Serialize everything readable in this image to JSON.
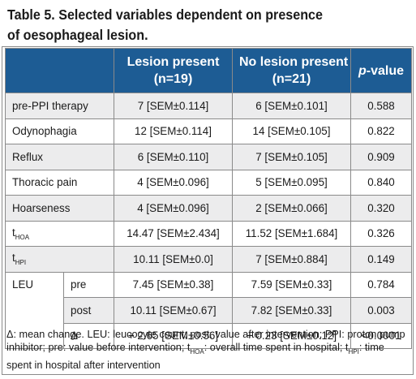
{
  "title": {
    "line1": "Table 5. Selected variables dependent on presence",
    "line2": "of oesophageal lesion."
  },
  "header": {
    "lesion_present_line1": "Lesion present",
    "lesion_present_line2": "(n=19)",
    "no_lesion_line1": "No lesion present",
    "no_lesion_line2": "(n=21)",
    "pvalue_italic": "p",
    "pvalue_rest": "-value"
  },
  "rows": [
    {
      "label": "pre-PPI therapy",
      "lesion": "7 [SEM±0.114]",
      "no_lesion": "6 [SEM±0.101]",
      "p": "0.588"
    },
    {
      "label": "Odynophagia",
      "lesion": "12 [SEM±0.114]",
      "no_lesion": "14 [SEM±0.105]",
      "p": "0.822"
    },
    {
      "label": "Reflux",
      "lesion": "6 [SEM±0.110]",
      "no_lesion": "7 [SEM±0.105]",
      "p": "0.909"
    },
    {
      "label": "Thoracic pain",
      "lesion": "4 [SEM±0.096]",
      "no_lesion": "5 [SEM±0.095]",
      "p": "0.840"
    },
    {
      "label": "Hoarseness",
      "lesion": "4 [SEM±0.096]",
      "no_lesion": "2 [SEM±0.066]",
      "p": "0.320"
    },
    {
      "label_main": "t",
      "label_sub": "HOA",
      "lesion": "14.47 [SEM±2.434]",
      "no_lesion": "11.52 [SEM±1.684]",
      "p": "0.326"
    },
    {
      "label_main": "t",
      "label_sub": "HPI",
      "lesion": "10.11 [SEM±0.0]",
      "no_lesion": "7 [SEM±0.884]",
      "p": "0.149"
    }
  ],
  "leu": {
    "label": "LEU",
    "subrows": [
      {
        "label": "pre",
        "lesion": "7.45 [SEM±0.38]",
        "no_lesion": "7.59 [SEM±0.33]",
        "p": "0.784"
      },
      {
        "label": "post",
        "lesion": "10.11 [SEM±0.67]",
        "no_lesion": "7.82 [SEM±0.33]",
        "p": "0.003"
      },
      {
        "label": "Δ",
        "lesion": "+ 2.65 [SEM±0.56]",
        "no_lesion": "+ 0.23 [SEM±0.12]",
        "p": "<0.0001"
      }
    ]
  },
  "footnote": {
    "part1": "Δ: mean change. LEU: leucocyte count; post: value after intervention; PPI: proton pump inhibitor; pre: value before intervention; t",
    "sub1": "HOA",
    "part2": ": overall time spent in hospital; t",
    "sub2": "HPI",
    "part3": ": time spent in hospital after intervention"
  },
  "colors": {
    "header_bg": "#1d5c94",
    "stripe_bg": "#ececed",
    "border": "#8a8a8a"
  }
}
